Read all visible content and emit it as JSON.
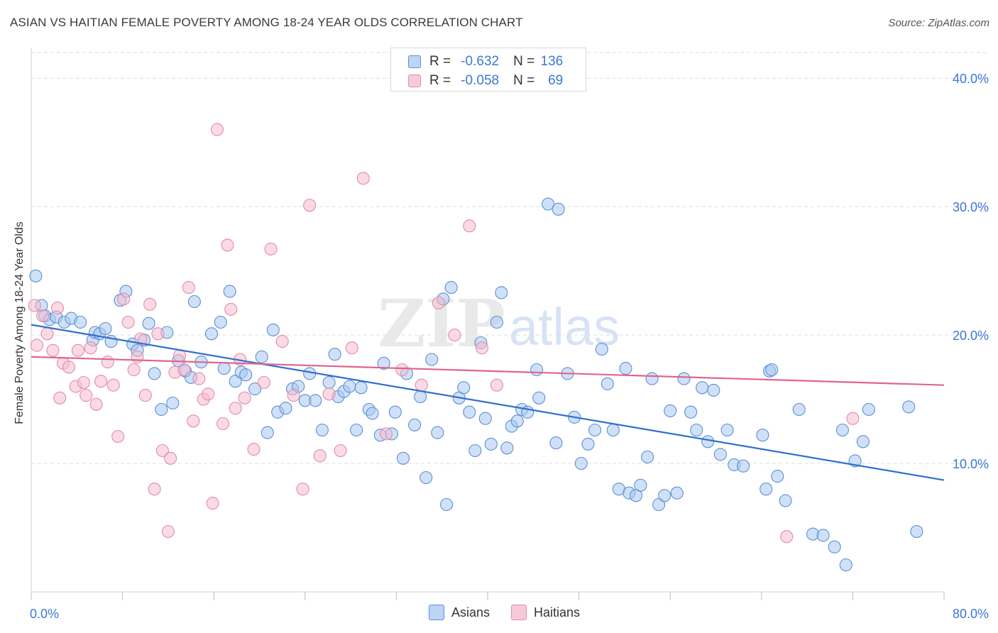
{
  "header": {
    "title": "ASIAN VS HAITIAN FEMALE POVERTY AMONG 18-24 YEAR OLDS CORRELATION CHART",
    "source": "Source: ZipAtlas.com"
  },
  "watermark": {
    "zip": "ZIP",
    "atlas": "atlas"
  },
  "stats_legend": [
    {
      "r_label": "R =",
      "r_value": "-0.632",
      "n_label": "N =",
      "n_value": "136"
    },
    {
      "r_label": "R =",
      "r_value": "-0.058",
      "n_label": "N =",
      "n_value": "69"
    }
  ],
  "colors": {
    "asians_fill": "#a9c8f0",
    "asians_stroke": "#5b8fd8",
    "asians_line": "#2f6fd0",
    "haitians_fill": "#f5bccf",
    "haitians_stroke": "#e58aa8",
    "haitians_line": "#e0648e",
    "tick_label": "#3a78d4",
    "grid": "#dddddd"
  },
  "chart_data": {
    "type": "scatter",
    "title": "ASIAN VS HAITIAN FEMALE POVERTY AMONG 18-24 YEAR OLDS CORRELATION CHART",
    "xlabel": "",
    "ylabel": "Female Poverty Among 18-24 Year Olds",
    "xlim": [
      0,
      80
    ],
    "ylim": [
      0,
      42
    ],
    "x_tick_labels": [
      "0.0%",
      "80.0%"
    ],
    "y_ticks": [
      10,
      20,
      30,
      40
    ],
    "y_tick_labels": [
      "10.0%",
      "20.0%",
      "30.0%",
      "40.0%"
    ],
    "grid": true,
    "legend_position": "bottom-center",
    "series": [
      {
        "name": "Asians",
        "r": -0.632,
        "n": 136,
        "trend": {
          "x": [
            0,
            80
          ],
          "y": [
            20.8,
            8.7
          ]
        },
        "points": [
          [
            0.4,
            24.6
          ],
          [
            0.9,
            22.3
          ],
          [
            1.2,
            21.5
          ],
          [
            1.6,
            21.2
          ],
          [
            2.2,
            21.4
          ],
          [
            2.9,
            21.0
          ],
          [
            3.5,
            21.3
          ],
          [
            4.3,
            21.0
          ],
          [
            5.4,
            19.6
          ],
          [
            5.6,
            20.2
          ],
          [
            6.0,
            20.1
          ],
          [
            6.5,
            20.5
          ],
          [
            7.0,
            19.5
          ],
          [
            7.8,
            22.7
          ],
          [
            8.3,
            23.4
          ],
          [
            8.9,
            19.3
          ],
          [
            9.3,
            18.8
          ],
          [
            9.9,
            19.6
          ],
          [
            10.3,
            20.9
          ],
          [
            10.8,
            17.0
          ],
          [
            11.4,
            14.2
          ],
          [
            11.9,
            20.2
          ],
          [
            12.4,
            14.7
          ],
          [
            12.9,
            18.0
          ],
          [
            13.5,
            17.2
          ],
          [
            14.0,
            16.7
          ],
          [
            14.3,
            22.6
          ],
          [
            14.9,
            17.9
          ],
          [
            15.8,
            20.1
          ],
          [
            16.6,
            21.0
          ],
          [
            16.9,
            17.4
          ],
          [
            17.4,
            23.4
          ],
          [
            17.9,
            16.4
          ],
          [
            18.4,
            17.1
          ],
          [
            18.8,
            16.9
          ],
          [
            19.6,
            15.8
          ],
          [
            20.2,
            18.3
          ],
          [
            20.7,
            12.4
          ],
          [
            21.2,
            20.4
          ],
          [
            21.6,
            14.0
          ],
          [
            22.3,
            14.3
          ],
          [
            22.9,
            15.8
          ],
          [
            23.4,
            16.0
          ],
          [
            24.0,
            14.9
          ],
          [
            24.4,
            17.0
          ],
          [
            24.9,
            14.9
          ],
          [
            25.5,
            12.6
          ],
          [
            26.1,
            16.3
          ],
          [
            26.6,
            18.5
          ],
          [
            26.9,
            15.2
          ],
          [
            27.4,
            15.6
          ],
          [
            27.9,
            16.0
          ],
          [
            28.5,
            12.6
          ],
          [
            28.9,
            15.9
          ],
          [
            29.6,
            14.2
          ],
          [
            29.9,
            13.9
          ],
          [
            30.6,
            12.2
          ],
          [
            30.9,
            17.8
          ],
          [
            31.6,
            12.3
          ],
          [
            31.9,
            14.0
          ],
          [
            32.6,
            10.4
          ],
          [
            32.9,
            17.0
          ],
          [
            33.6,
            13.0
          ],
          [
            34.1,
            15.2
          ],
          [
            34.6,
            8.9
          ],
          [
            35.1,
            18.1
          ],
          [
            35.6,
            12.4
          ],
          [
            36.1,
            22.8
          ],
          [
            36.4,
            6.8
          ],
          [
            36.8,
            23.7
          ],
          [
            37.5,
            15.1
          ],
          [
            37.9,
            15.9
          ],
          [
            38.4,
            14.0
          ],
          [
            38.9,
            11.0
          ],
          [
            39.4,
            19.4
          ],
          [
            39.8,
            13.5
          ],
          [
            40.3,
            11.5
          ],
          [
            40.8,
            21.0
          ],
          [
            41.2,
            23.3
          ],
          [
            41.7,
            11.2
          ],
          [
            42.1,
            12.9
          ],
          [
            42.6,
            13.3
          ],
          [
            43.0,
            14.2
          ],
          [
            43.5,
            14.0
          ],
          [
            44.3,
            17.3
          ],
          [
            44.5,
            15.1
          ],
          [
            45.3,
            30.2
          ],
          [
            46.0,
            11.6
          ],
          [
            46.2,
            29.8
          ],
          [
            47.0,
            17.0
          ],
          [
            47.6,
            13.6
          ],
          [
            48.2,
            10.0
          ],
          [
            48.8,
            11.5
          ],
          [
            49.4,
            12.6
          ],
          [
            50.0,
            18.9
          ],
          [
            50.5,
            16.2
          ],
          [
            51.0,
            12.6
          ],
          [
            51.5,
            8.0
          ],
          [
            52.1,
            17.4
          ],
          [
            52.4,
            7.7
          ],
          [
            53.0,
            7.5
          ],
          [
            53.4,
            8.3
          ],
          [
            54.0,
            10.5
          ],
          [
            54.4,
            16.6
          ],
          [
            55.0,
            6.8
          ],
          [
            55.5,
            7.5
          ],
          [
            56.0,
            14.1
          ],
          [
            56.6,
            7.7
          ],
          [
            57.2,
            16.6
          ],
          [
            57.8,
            14.0
          ],
          [
            58.3,
            12.6
          ],
          [
            58.8,
            15.9
          ],
          [
            59.3,
            11.7
          ],
          [
            59.8,
            15.7
          ],
          [
            60.4,
            10.7
          ],
          [
            61.0,
            12.6
          ],
          [
            61.6,
            9.9
          ],
          [
            62.4,
            9.8
          ],
          [
            64.1,
            12.2
          ],
          [
            64.4,
            8.0
          ],
          [
            64.7,
            17.2
          ],
          [
            64.9,
            17.3
          ],
          [
            65.4,
            9.0
          ],
          [
            66.1,
            7.1
          ],
          [
            67.3,
            14.2
          ],
          [
            68.5,
            4.5
          ],
          [
            69.4,
            4.4
          ],
          [
            70.4,
            3.5
          ],
          [
            71.1,
            12.6
          ],
          [
            71.4,
            2.1
          ],
          [
            72.2,
            10.2
          ],
          [
            72.9,
            11.7
          ],
          [
            73.4,
            14.2
          ],
          [
            76.9,
            14.4
          ],
          [
            77.6,
            4.7
          ]
        ]
      },
      {
        "name": "Haitians",
        "r": -0.058,
        "n": 69,
        "trend": {
          "x": [
            0,
            80
          ],
          "y": [
            18.3,
            16.1
          ]
        },
        "points": [
          [
            0.3,
            22.3
          ],
          [
            0.5,
            19.2
          ],
          [
            1.0,
            21.5
          ],
          [
            1.4,
            20.1
          ],
          [
            1.9,
            18.8
          ],
          [
            2.3,
            22.1
          ],
          [
            2.5,
            15.1
          ],
          [
            2.8,
            17.8
          ],
          [
            3.3,
            17.5
          ],
          [
            3.9,
            16.0
          ],
          [
            4.1,
            18.8
          ],
          [
            4.6,
            16.3
          ],
          [
            4.8,
            15.3
          ],
          [
            5.2,
            19.0
          ],
          [
            5.7,
            14.6
          ],
          [
            6.1,
            16.4
          ],
          [
            6.7,
            17.9
          ],
          [
            7.2,
            16.1
          ],
          [
            7.6,
            12.1
          ],
          [
            8.1,
            22.8
          ],
          [
            8.5,
            21.0
          ],
          [
            9.0,
            17.3
          ],
          [
            9.3,
            18.3
          ],
          [
            9.6,
            19.7
          ],
          [
            10.0,
            15.3
          ],
          [
            10.4,
            22.4
          ],
          [
            10.8,
            8.0
          ],
          [
            11.1,
            20.1
          ],
          [
            11.5,
            11.0
          ],
          [
            12.0,
            4.7
          ],
          [
            12.2,
            10.4
          ],
          [
            12.6,
            17.1
          ],
          [
            13.0,
            18.4
          ],
          [
            13.4,
            17.3
          ],
          [
            13.8,
            23.7
          ],
          [
            14.2,
            13.3
          ],
          [
            14.7,
            16.6
          ],
          [
            15.1,
            15.0
          ],
          [
            15.5,
            15.4
          ],
          [
            15.9,
            6.9
          ],
          [
            16.3,
            36.0
          ],
          [
            16.8,
            13.1
          ],
          [
            17.2,
            27.0
          ],
          [
            17.5,
            22.0
          ],
          [
            17.9,
            14.3
          ],
          [
            18.3,
            18.1
          ],
          [
            18.7,
            15.1
          ],
          [
            19.5,
            11.1
          ],
          [
            20.4,
            16.3
          ],
          [
            21.0,
            26.7
          ],
          [
            22.0,
            19.5
          ],
          [
            23.0,
            15.3
          ],
          [
            23.8,
            8.0
          ],
          [
            24.4,
            30.1
          ],
          [
            25.3,
            10.6
          ],
          [
            26.1,
            15.4
          ],
          [
            27.1,
            11.0
          ],
          [
            28.1,
            19.0
          ],
          [
            29.1,
            32.2
          ],
          [
            31.1,
            12.3
          ],
          [
            32.5,
            17.3
          ],
          [
            34.2,
            16.1
          ],
          [
            35.7,
            22.5
          ],
          [
            37.1,
            20.0
          ],
          [
            38.4,
            28.5
          ],
          [
            39.5,
            19.0
          ],
          [
            40.8,
            16.1
          ],
          [
            66.2,
            4.3
          ],
          [
            72.0,
            13.5
          ]
        ]
      }
    ]
  }
}
